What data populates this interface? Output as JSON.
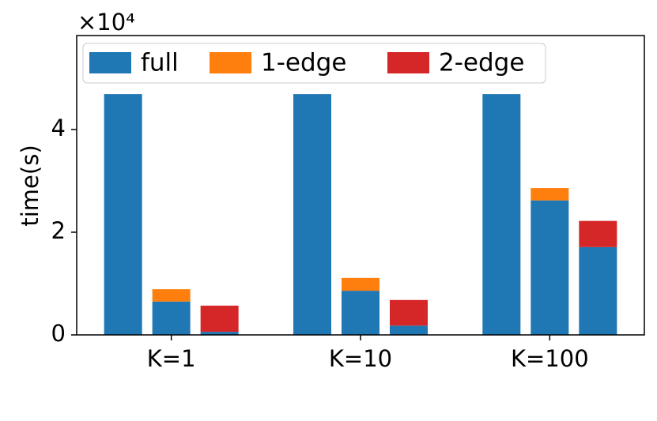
{
  "chart_data": {
    "type": "bar",
    "y_label": "time(s)",
    "y_offset_label": "×10⁴",
    "categories": [
      "K=1",
      "K=10",
      "K=100"
    ],
    "series": [
      {
        "name": "full",
        "color": "#1f77b4",
        "values": [
          46900,
          46900,
          46900
        ]
      },
      {
        "name": "1-edge",
        "color": "#ff7f0e",
        "base_color": "#1f77b4",
        "base_values": [
          6500,
          8600,
          26200
        ],
        "values": [
          2400,
          2500,
          2400
        ]
      },
      {
        "name": "2-edge",
        "color": "#d62728",
        "base_color": "#1f77b4",
        "base_values": [
          600,
          1800,
          17100
        ],
        "values": [
          5100,
          5000,
          5100
        ]
      }
    ],
    "ylim": [
      0,
      58300
    ],
    "yticks": [
      {
        "value": 0,
        "label": "0"
      },
      {
        "value": 20000,
        "label": "2"
      },
      {
        "value": 40000,
        "label": "4"
      }
    ],
    "legend": "upper left"
  }
}
